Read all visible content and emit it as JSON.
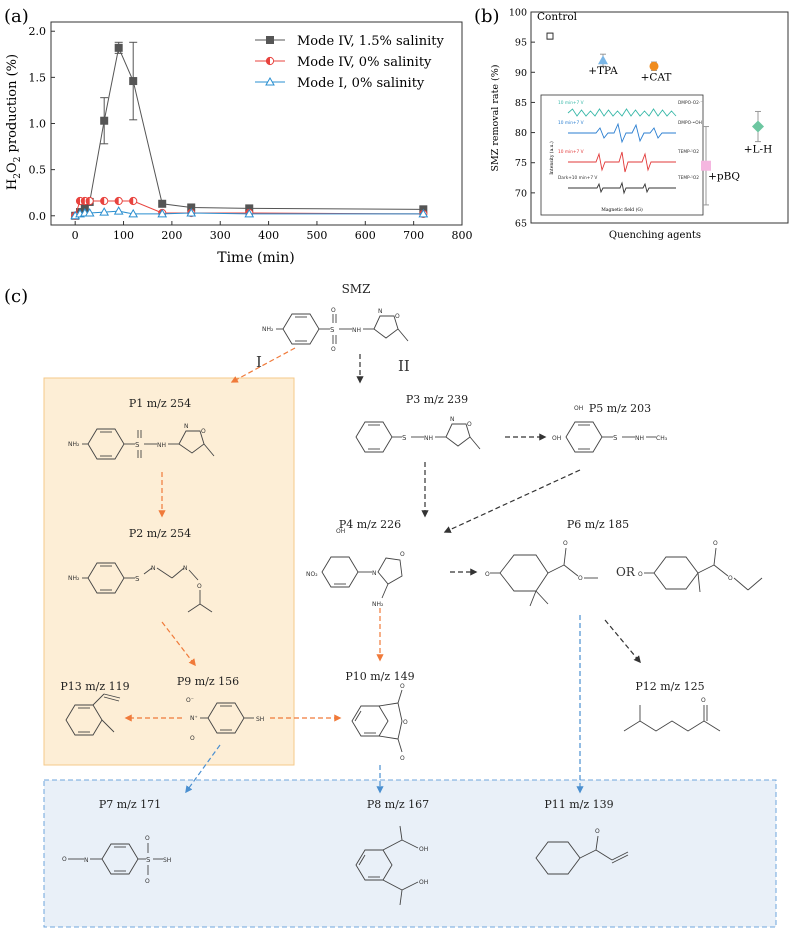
{
  "panels": {
    "a": "(a)",
    "b": "(b)",
    "c": "(c)"
  },
  "chart_data": [
    {
      "type": "line",
      "title": "",
      "xlabel": "Time (min)",
      "ylabel_main": "H",
      "ylabel_sub1": "2",
      "ylabel_mid": "O",
      "ylabel_sub2": "2",
      "ylabel_rest": " production (%)",
      "xlim": [
        -50,
        800
      ],
      "ylim": [
        -0.1,
        2.1
      ],
      "x_ticks": [
        0,
        100,
        200,
        300,
        400,
        500,
        600,
        700,
        800
      ],
      "y_ticks": [
        0.0,
        0.5,
        1.0,
        1.5,
        2.0
      ],
      "legend_position": "top-right",
      "series": [
        {
          "name": "Mode IV, 1.5% salinity",
          "color": "#555555",
          "marker": "square",
          "x": [
            0,
            10,
            20,
            30,
            60,
            90,
            120,
            180,
            240,
            360,
            720
          ],
          "y": [
            0.0,
            0.04,
            0.08,
            0.15,
            1.03,
            1.82,
            1.46,
            0.13,
            0.09,
            0.08,
            0.07
          ],
          "err": [
            0,
            0,
            0.03,
            0,
            0.25,
            0.06,
            0.42,
            0,
            0,
            0,
            0
          ]
        },
        {
          "name": "Mode IV, 0% salinity",
          "color": "#e8433e",
          "marker": "half-circle",
          "x": [
            0,
            10,
            20,
            30,
            60,
            90,
            120,
            180,
            240,
            360,
            720
          ],
          "y": [
            0.0,
            0.16,
            0.16,
            0.16,
            0.16,
            0.16,
            0.16,
            0.03,
            0.03,
            0.03,
            0.02
          ],
          "err": [
            0,
            0,
            0,
            0,
            0,
            0,
            0,
            0,
            0,
            0,
            0
          ]
        },
        {
          "name": "Mode I, 0% salinity",
          "color": "#2a8fd0",
          "marker": "triangle",
          "x": [
            0,
            10,
            20,
            30,
            60,
            90,
            120,
            180,
            240,
            360,
            720
          ],
          "y": [
            0.0,
            0.02,
            0.03,
            0.03,
            0.04,
            0.05,
            0.02,
            0.02,
            0.03,
            0.02,
            0.02
          ],
          "err": [
            0,
            0,
            0,
            0,
            0,
            0,
            0,
            0,
            0,
            0,
            0
          ]
        }
      ]
    },
    {
      "type": "scatter",
      "title": "",
      "xlabel": "Quenching agents",
      "ylabel": "SMZ removal rate (%)",
      "ylim": [
        65,
        100
      ],
      "y_ticks": [
        65,
        70,
        75,
        80,
        85,
        90,
        95,
        100
      ],
      "points": [
        {
          "label": "Control",
          "value": 96.0,
          "err": 0.5,
          "color": "#333333",
          "marker": "square-open"
        },
        {
          "label": "+TPA",
          "value": 92.0,
          "err": 1.0,
          "color": "#7ab6e6",
          "marker": "triangle"
        },
        {
          "label": "+CAT",
          "value": 91.0,
          "err": 0.7,
          "color": "#f08c1e",
          "marker": "circle"
        },
        {
          "label": "+pBQ",
          "value": 74.5,
          "err": 6.5,
          "color": "#f5b6e0",
          "marker": "square"
        },
        {
          "label": "+L-H",
          "value": 81.0,
          "err": 2.5,
          "color": "#6cc6a0",
          "marker": "diamond"
        }
      ],
      "inset": {
        "xlabel": "Magnetic field (G)",
        "ylabel": "Intensity (a.u.)",
        "traces": [
          {
            "left": "10 min+7 V",
            "right": "DMPO-O2·⁻",
            "color": "#38b8a8"
          },
          {
            "left": "10 min+7 V",
            "right": "DMPO-•OH",
            "color": "#2a7ed0"
          },
          {
            "left": "10 min+7 V",
            "right": "TEMP-¹O2",
            "color": "#e23a3a"
          },
          {
            "left": "Dark+10 min+7 V",
            "right": "TEMP-¹O2",
            "color": "#333333"
          }
        ]
      }
    }
  ],
  "pathway": {
    "title": "SMZ",
    "route_I": "I",
    "route_II": "II",
    "compounds": {
      "p1": "P1 m/z 254",
      "p2": "P2 m/z 254",
      "p3": "P3 m/z 239",
      "p4": "P4 m/z 226",
      "p5": "P5 m/z 203",
      "p6": "P6 m/z 185",
      "p7": "P7 m/z 171",
      "p8": "P8 m/z 167",
      "p9": "P9 m/z 156",
      "p10": "P10 m/z 149",
      "p11": "P11 m/z 139",
      "p12": "P12 m/z 125",
      "p13": "P13 m/z 119"
    },
    "or_label": "OR",
    "atoms": {
      "nh2": "NH₂",
      "nh": "NH",
      "n": "N",
      "o": "O",
      "s": "S",
      "oh": "OH",
      "ch3": "CH₃",
      "sh": "SH",
      "no2": "NO₂",
      "n_plus": "N⁺",
      "o_minus": "O⁻",
      "cooh_oh": "OH"
    },
    "colors": {
      "orange_arrow": "#f07a3a",
      "dark_arrow": "#333333",
      "blue_arrow": "#4a8fd0",
      "box_orange": "#fdeed6",
      "box_blue": "#e9f0f8"
    }
  }
}
